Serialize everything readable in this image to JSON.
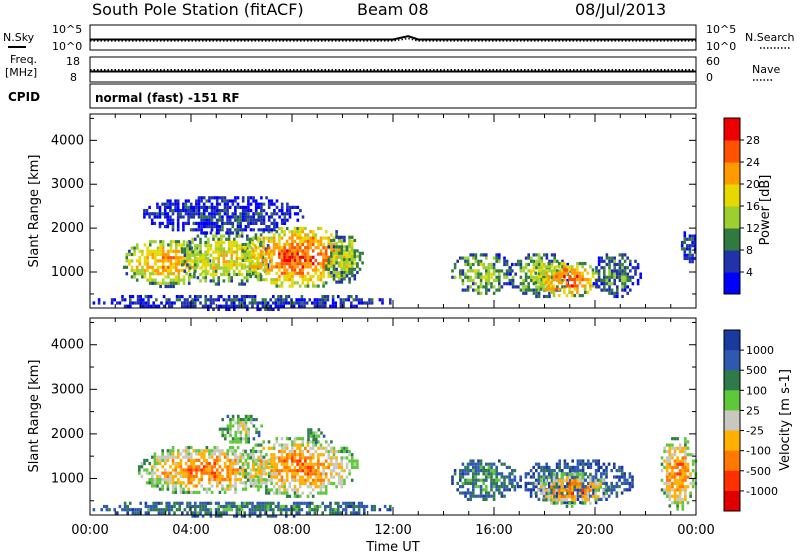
{
  "header": {
    "station": "South Pole Station (fitACF)",
    "beam": "Beam 08",
    "date": "08/Jul/2013"
  },
  "mode_text": "normal (fast) -151 RF",
  "panel_labels": {
    "nsky": "N.Sky",
    "freq": "Freq.",
    "freq_unit": "[MHz]",
    "cpid": "CPID",
    "nsearch": "N.Search",
    "nave": "Nave"
  },
  "chart_data": [
    {
      "type": "line",
      "title": "",
      "series": [
        {
          "name": "N.Sky",
          "style": "solid",
          "x": [
            0,
            2,
            4,
            6,
            8,
            10,
            12,
            12.6,
            13,
            16,
            20,
            24
          ],
          "values": [
            1.5,
            1.5,
            1.5,
            1.5,
            1.5,
            1.5,
            1.5,
            2.6,
            1.5,
            1.5,
            1.5,
            1.5
          ]
        },
        {
          "name": "N.Search",
          "style": "dotted",
          "x": [
            0,
            6,
            12,
            12.6,
            13,
            18,
            24
          ],
          "values": [
            -0.3,
            -0.3,
            -0.3,
            0.5,
            -0.3,
            -0.3,
            -0.3
          ]
        }
      ],
      "ylabel_left": [
        "10^5",
        "10^0"
      ],
      "ylabel_right": [
        "10^5",
        "10^0"
      ]
    },
    {
      "type": "line",
      "title": "",
      "series": [
        {
          "name": "Freq.",
          "style": "solid",
          "x": [
            0,
            24
          ],
          "values": [
            12.2,
            12.2
          ]
        },
        {
          "name": "Nave",
          "style": "dotted",
          "x": [
            0,
            24
          ],
          "values": [
            27,
            27
          ]
        }
      ],
      "yticks_left": [
        "18",
        "8"
      ],
      "yticks_right": [
        "60",
        "0"
      ]
    },
    {
      "type": "heatmap",
      "name": "Power",
      "xlabel": "",
      "ylabel": "Slant Range [km]",
      "xlim": [
        0,
        24
      ],
      "ylim": [
        180,
        4600
      ],
      "yticks": [
        "1000",
        "2000",
        "3000",
        "4000"
      ],
      "colorbar_label": "Power [dB]",
      "colorbar_ticks": [
        "4",
        "8",
        "12",
        "16",
        "20",
        "24",
        "28"
      ],
      "colorbar_colors": [
        "#0000ff",
        "#2233aa",
        "#307a40",
        "#9cd030",
        "#e6d800",
        "#ff9a00",
        "#ff5200",
        "#ee0000"
      ],
      "blobs": [
        {
          "t0": 1.2,
          "t1": 4.8,
          "r0": 700,
          "r1": 1800,
          "level": 5
        },
        {
          "t0": 3.5,
          "t1": 7.2,
          "r0": 700,
          "r1": 2000,
          "level": 4
        },
        {
          "t0": 5.8,
          "t1": 10.7,
          "r0": 650,
          "r1": 2100,
          "level": 6
        },
        {
          "t0": 9.2,
          "t1": 10.8,
          "r0": 750,
          "r1": 1900,
          "level": 3
        },
        {
          "t0": 2.0,
          "t1": 8.5,
          "r0": 1900,
          "r1": 2800,
          "level": 1
        },
        {
          "t0": 14.2,
          "t1": 16.8,
          "r0": 500,
          "r1": 1500,
          "level": 3
        },
        {
          "t0": 16.5,
          "t1": 19.0,
          "r0": 450,
          "r1": 1500,
          "level": 3
        },
        {
          "t0": 17.5,
          "t1": 20.2,
          "r0": 450,
          "r1": 1300,
          "level": 6
        },
        {
          "t0": 19.8,
          "t1": 21.8,
          "r0": 450,
          "r1": 1500,
          "level": 2
        },
        {
          "t0": 23.3,
          "t1": 24.0,
          "r0": 1200,
          "r1": 2000,
          "level": 1
        },
        {
          "t0": 0.0,
          "t1": 12.0,
          "r0": 180,
          "r1": 550,
          "level": 1
        }
      ]
    },
    {
      "type": "heatmap",
      "name": "Velocity",
      "xlabel": "Time UT",
      "ylabel": "Slant Range [km]",
      "xlim": [
        0,
        24
      ],
      "ylim": [
        180,
        4600
      ],
      "xticks": [
        "00:00",
        "04:00",
        "08:00",
        "12:00",
        "16:00",
        "20:00",
        "00:00"
      ],
      "yticks": [
        "1000",
        "2000",
        "3000",
        "4000"
      ],
      "colorbar_label": "Velocity [m s-1]",
      "colorbar_ticks": [
        "1000",
        "500",
        "100",
        "25",
        "-25",
        "-100",
        "-500",
        "-1000"
      ],
      "colorbar_colors": [
        "#1a3aa0",
        "#2f58b0",
        "#2f7a4a",
        "#5ec83a",
        "#c8c8c0",
        "#ffb000",
        "#ff7800",
        "#ff3000",
        "#e00000"
      ],
      "blobs": [
        {
          "t0": 1.8,
          "t1": 7.3,
          "r0": 650,
          "r1": 1800,
          "level": 6
        },
        {
          "t0": 5.8,
          "t1": 10.6,
          "r0": 600,
          "r1": 2000,
          "level": 6
        },
        {
          "t0": 5.0,
          "t1": 6.8,
          "r0": 1800,
          "r1": 2500,
          "level": 4
        },
        {
          "t0": 8.5,
          "t1": 9.3,
          "r0": 1800,
          "r1": 2200,
          "level": 3
        },
        {
          "t0": 14.2,
          "t1": 17.0,
          "r0": 500,
          "r1": 1500,
          "level": 2
        },
        {
          "t0": 16.8,
          "t1": 21.5,
          "r0": 450,
          "r1": 1500,
          "level": 1
        },
        {
          "t0": 17.5,
          "t1": 20.5,
          "r0": 400,
          "r1": 1200,
          "level": 6
        },
        {
          "t0": 22.5,
          "t1": 24.0,
          "r0": 300,
          "r1": 2000,
          "level": 6
        },
        {
          "t0": 0.0,
          "t1": 12.0,
          "r0": 180,
          "r1": 550,
          "level": 2
        }
      ]
    }
  ]
}
